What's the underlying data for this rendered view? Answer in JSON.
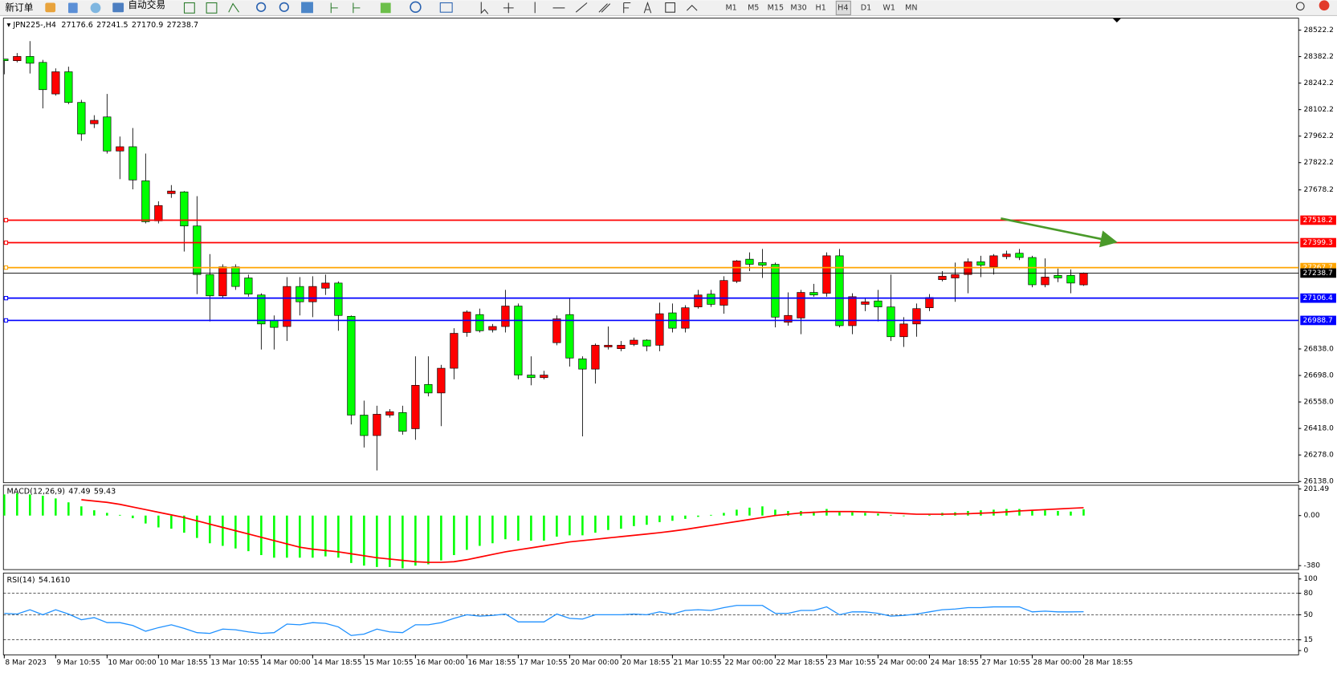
{
  "toolbar": {
    "new_order": "新订单",
    "auto_trading": "自动交易",
    "timeframes": [
      "M1",
      "M5",
      "M15",
      "M30",
      "H1",
      "H4",
      "D1",
      "W1",
      "MN"
    ]
  },
  "chart_data": [
    {
      "type": "candlestick",
      "symbol": "JPN225-,H4",
      "categories": [
        "8 Mar 2023",
        null,
        null,
        null,
        "9 Mar 10:55",
        null,
        null,
        null,
        "10 Mar 00:00",
        null,
        null,
        null,
        "10 Mar 18:55",
        null,
        null,
        null,
        "13 Mar 10:55",
        null,
        null,
        null,
        "14 Mar 00:00",
        null,
        null,
        null,
        "14 Mar 18:55",
        null,
        null,
        null,
        "15 Mar 10:55",
        null,
        null,
        null,
        "16 Mar 00:00",
        null,
        null,
        null,
        "16 Mar 18:55",
        null,
        null,
        null,
        "17 Mar 10:55",
        null,
        null,
        null,
        "20 Mar 00:00",
        null,
        null,
        null,
        "20 Mar 18:55",
        null,
        null,
        null,
        "21 Mar 10:55",
        null,
        null,
        null,
        "22 Mar 00:00",
        null,
        null,
        null,
        "22 Mar 18:55",
        null,
        null,
        null,
        "23 Mar 10:55",
        null,
        null,
        null,
        "24 Mar 00:00",
        null,
        null,
        null,
        "24 Mar 18:55",
        null,
        null,
        null,
        "27 Mar 10:55",
        null,
        null,
        null,
        "28 Mar 00:00",
        null,
        null,
        null,
        "28 Mar 18:55"
      ],
      "open": [
        28369.5,
        28360.5,
        28383,
        28351.5,
        28185,
        28302,
        28140,
        28027.5,
        28063.5,
        27883.5,
        27906,
        27726,
        27514.5,
        27658.5,
        27667.5,
        27487.5,
        27231,
        27118.5,
        27271.5,
        27213,
        27123,
        26988,
        26956.5,
        27168,
        27087,
        27159,
        27186,
        27010.5,
        26488.5,
        26380.5,
        26488.5,
        26502,
        26416.5,
        26650.5,
        26605.5,
        26736,
        26925,
        27019.5,
        26938.5,
        26956.5,
        27064.5,
        26700,
        26686.5,
        26871,
        27019.5,
        26785.5,
        26731.5,
        26848.5,
        26839.5,
        26862,
        26884.5,
        26857.5,
        27028.5,
        26947.5,
        27060,
        27127.5,
        27069,
        27195,
        27312,
        27294,
        27285,
        26979,
        27001.5,
        27136.5,
        27132,
        27330,
        26961,
        27073.5,
        27091.5,
        27060,
        26902.5,
        26970,
        27055.5,
        27204,
        27213,
        27231,
        27298.5,
        27271.5,
        27325.5,
        27343.5,
        27321,
        27177,
        27226.5,
        27226.5,
        27176.6
      ],
      "high": [
        28369.5,
        28401,
        28464,
        28365,
        28320,
        28329,
        28153.5,
        28072.5,
        28185,
        27960,
        28005,
        27870,
        27618,
        27703.5,
        27672,
        27645,
        27339,
        27285,
        27285,
        27231,
        27132,
        27015,
        27217.5,
        27217.5,
        27222,
        27231,
        27195,
        27015,
        26565,
        26538,
        26520,
        26538,
        26799,
        26799,
        26754,
        26947.5,
        27042,
        27051,
        26970,
        27150,
        27078,
        26799,
        26722.5,
        27015,
        27105,
        26799,
        26866.5,
        26956.5,
        26880,
        26898,
        26889,
        27082.5,
        27078,
        27069,
        27150,
        27150,
        27222,
        27307.5,
        27348,
        27366,
        27294,
        27136.5,
        27150,
        27181.5,
        27348,
        27366,
        27132,
        27105,
        27150,
        27231,
        27006,
        27078,
        27127.5,
        27249,
        27294,
        27316.5,
        27330,
        27339,
        27357,
        27366,
        27330,
        27316.5,
        27262.5,
        27258,
        27241.5
      ],
      "low": [
        28288.5,
        28351.5,
        28293,
        28108.5,
        28176,
        28131,
        27937.5,
        28005,
        27870,
        27735,
        27681,
        27501,
        27501,
        27636,
        27352.5,
        27127.5,
        26983.5,
        27105,
        27150,
        27114,
        26835,
        26835,
        26880,
        27015,
        27006,
        27123,
        26934,
        26439,
        26317.5,
        26196,
        26475,
        26385,
        26358,
        26587.5,
        26430,
        26677.5,
        26902.5,
        26925,
        26925,
        26925,
        26677.5,
        26646,
        26677.5,
        26857.5,
        26745,
        26376,
        26655,
        26835,
        26826,
        26853,
        26826,
        26826,
        26925,
        26925,
        27051,
        27060,
        27024,
        27186,
        27249,
        27213,
        26952,
        26961,
        26916,
        27114,
        27114,
        26952,
        26916,
        27037.5,
        26983.5,
        26880,
        26848.5,
        26902.5,
        27037.5,
        27195,
        27087,
        27132,
        27217.5,
        27231,
        27312,
        27307.5,
        27163.5,
        27163.5,
        27190.5,
        27132,
        27170.9
      ],
      "close": [
        28360.5,
        28383,
        28347,
        28207.5,
        28302,
        28140,
        27973.5,
        28045.5,
        27883.5,
        27906,
        27730.5,
        27510,
        27595.5,
        27672,
        27487.5,
        27231,
        27118.5,
        27271.5,
        27168,
        27127.5,
        26970,
        26952,
        27168,
        27087,
        27168,
        27186,
        27015,
        26488.5,
        26380.5,
        26493,
        26506.5,
        26403,
        26646,
        26605.5,
        26736,
        26920.5,
        27033,
        26934,
        26956.5,
        27064.5,
        26700,
        26686.5,
        26700,
        26997,
        26790,
        26731.5,
        26857.5,
        26857.5,
        26857.5,
        26884.5,
        26853,
        27024,
        26947.5,
        27055.5,
        27123,
        27073.5,
        27199.5,
        27303,
        27285,
        27280.5,
        27006,
        27015,
        27136.5,
        27123,
        27330,
        26961,
        27114,
        27087,
        27060,
        26902.5,
        26970,
        27051,
        27109.5,
        27222,
        27231,
        27298.5,
        27280.5,
        27330,
        27339,
        27321,
        27177,
        27217.5,
        27213,
        27186,
        27238.7
      ],
      "up_color": "#ff0000",
      "down_color": "#00ff00",
      "ylim": [
        26131.6,
        28585.2
      ],
      "yticks": [
        28522.2,
        28382.2,
        28242.2,
        28102.2,
        27962.2,
        27822.2,
        27678.2,
        {
          "value": 26838,
          "label": "26838.0"
        },
        {
          "value": 26698,
          "label": "26698.0"
        },
        {
          "value": 26558,
          "label": "26558.0"
        },
        {
          "value": 26418,
          "label": "26418.0"
        },
        {
          "value": 26278,
          "label": "26278.0"
        },
        {
          "value": 26138,
          "label": "26138.0"
        }
      ],
      "levels": [
        {
          "value": 27518.2,
          "color": "#ff0000"
        },
        {
          "value": 27399.3,
          "color": "#ff0000"
        },
        {
          "value": 27267.7,
          "color": "#ffa500"
        },
        {
          "value": 27106.4,
          "color": "#0000ff"
        },
        {
          "value": 26988.7,
          "color": "#0000ff"
        }
      ]
    },
    {
      "type": "macd",
      "title": "MACD(12,26,9)",
      "histogram": {
        "color": "#00ff00",
        "values": [
          160,
          170,
          160,
          150,
          130,
          100,
          70,
          40,
          20,
          5,
          -20,
          -60,
          -90,
          -100,
          -130,
          -170,
          -210,
          -230,
          -250,
          -270,
          -300,
          -320,
          -320,
          -320,
          -320,
          -310,
          -320,
          -360,
          -380,
          -390,
          -390,
          -400,
          -380,
          -370,
          -340,
          -300,
          -260,
          -230,
          -210,
          -180,
          -190,
          -190,
          -190,
          -160,
          -150,
          -150,
          -130,
          -110,
          -100,
          -80,
          -70,
          -50,
          -40,
          -25,
          -10,
          5,
          20,
          45,
          60,
          70,
          45,
          35,
          35,
          30,
          50,
          25,
          25,
          20,
          15,
          5,
          -5,
          0,
          5,
          20,
          25,
          35,
          40,
          45,
          50,
          50,
          40,
          40,
          35,
          30,
          47.49
        ]
      },
      "signal": {
        "color": "#ff0000",
        "values": [
          null,
          null,
          null,
          null,
          null,
          null,
          120,
          110,
          100,
          85,
          65,
          45,
          25,
          5,
          -15,
          -40,
          -65,
          -90,
          -115,
          -140,
          -165,
          -190,
          -215,
          -240,
          -255,
          -265,
          -275,
          -290,
          -305,
          -320,
          -330,
          -340,
          -350,
          -355,
          -355,
          -350,
          -335,
          -315,
          -295,
          -275,
          -260,
          -245,
          -230,
          -215,
          -200,
          -190,
          -180,
          -170,
          -160,
          -150,
          -140,
          -130,
          -118,
          -105,
          -90,
          -75,
          -60,
          -45,
          -30,
          -15,
          0,
          10,
          20,
          25,
          30,
          30,
          30,
          28,
          25,
          20,
          15,
          10,
          10,
          10,
          12,
          14,
          18,
          22,
          28,
          35,
          40,
          45,
          50,
          55,
          59.43
        ]
      },
      "ylim": [
        -410,
        230
      ],
      "yticks": [
        201.49,
        {
          "value": 0,
          "label": "0.00"
        },
        -380
      ]
    },
    {
      "type": "line",
      "title": "RSI(14)",
      "color": "#1e90ff",
      "values": [
        52,
        51,
        57,
        50,
        57,
        51,
        43,
        46,
        39,
        39,
        35,
        27,
        32,
        36,
        31,
        25,
        24,
        30,
        29,
        26,
        24,
        25,
        37,
        36,
        39,
        38,
        33,
        21,
        23,
        30,
        26,
        25,
        36,
        36,
        39,
        45,
        50,
        48,
        49,
        51,
        40,
        40,
        40,
        51,
        45,
        44,
        50,
        50,
        50,
        51,
        50,
        54,
        51,
        56,
        57,
        56,
        60,
        63,
        63,
        63,
        52,
        52,
        56,
        56,
        61,
        50,
        54,
        54,
        52,
        48,
        49,
        51,
        54,
        57,
        58,
        60,
        60,
        61,
        61,
        61,
        54,
        55,
        54,
        54,
        54.161
      ],
      "value_labels": [
        null,
        null,
        null,
        null,
        null,
        null,
        null,
        null,
        null,
        null,
        null,
        null,
        null,
        null,
        null,
        null,
        null,
        null,
        null,
        null,
        null,
        null,
        null,
        null,
        null,
        null,
        null,
        null,
        null,
        null,
        null,
        null,
        null,
        null,
        null,
        null,
        null,
        null,
        null,
        null,
        null,
        null,
        null,
        null,
        null,
        null,
        null,
        null,
        null,
        null,
        null,
        null,
        null,
        null,
        null,
        null,
        null,
        null,
        null,
        null,
        null,
        null,
        null,
        null,
        null,
        null,
        null,
        null,
        null,
        null,
        null,
        null,
        null,
        null,
        null,
        null,
        null,
        null,
        null,
        null,
        null,
        null,
        null,
        null,
        "54.1610"
      ],
      "levels": [
        80,
        50,
        15
      ],
      "ylim": [
        -6,
        108.3
      ],
      "yticks": [
        100,
        80,
        50,
        15,
        0
      ]
    }
  ]
}
